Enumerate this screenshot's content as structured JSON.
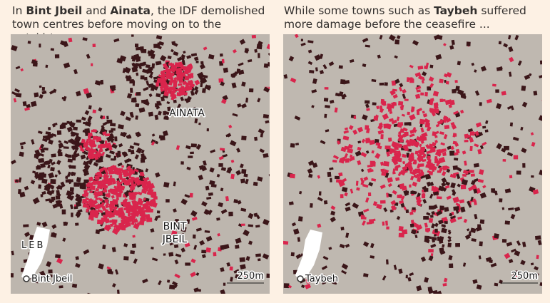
{
  "panels": [
    {
      "caption": [
        {
          "text": "In ",
          "bold": false
        },
        {
          "text": "Bint Jbeil",
          "bold": true
        },
        {
          "text": " and ",
          "bold": false
        },
        {
          "text": "Ainata",
          "bold": true
        },
        {
          "text": ", the IDF demolished town centres before moving on to the outskirts",
          "bold": false
        }
      ],
      "labels": {
        "town_1": "AINATA",
        "town_2_line_1": "BINT",
        "town_2_line_2": "JBEIL",
        "inset": "LEB",
        "pin": "Bint Jbeil",
        "scale": "250m"
      }
    },
    {
      "caption": [
        {
          "text": "While some towns such as ",
          "bold": false
        },
        {
          "text": "Taybeh",
          "bold": true
        },
        {
          "text": " suffered more damage before the ceasefire ...",
          "bold": false
        }
      ],
      "labels": {
        "pin": "Taybeh",
        "scale": "250m"
      }
    }
  ]
}
